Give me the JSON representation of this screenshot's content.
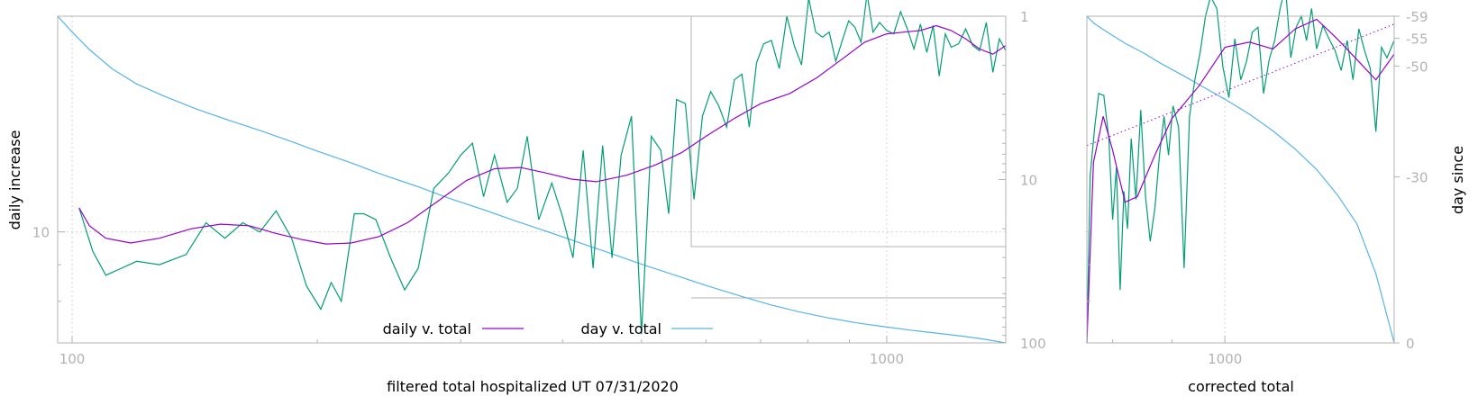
{
  "colors": {
    "daily": "#9400d3",
    "day": "#56b4e9",
    "raw": "#009e73",
    "trend": "#9400d3",
    "axis": "#b3b3b3",
    "grid": "#d3d3d3"
  },
  "chart_data": [
    {
      "type": "line",
      "xlabel": "filtered total hospitalized UT 07/31/2020",
      "ylabel": "daily increase",
      "xscale": "log",
      "yscale": "log",
      "xlim": [
        96,
        1400
      ],
      "ylim": [
        7,
        20
      ],
      "y2scale": "log",
      "y2lim": [
        1,
        100
      ],
      "y2_reversed": true,
      "grid": true,
      "legend": "bottom-center",
      "xticks": [
        100,
        1000
      ],
      "xtick_labels": [
        "100",
        "1000"
      ],
      "yticks": [
        10
      ],
      "ytick_labels": [
        "10"
      ],
      "y2ticks": [
        1,
        10,
        100
      ],
      "y2tick_labels": [
        "1",
        "10",
        "100"
      ],
      "series": [
        {
          "name": "daily v. total",
          "role": "smoothed",
          "x": [
            102,
            105,
            110,
            118,
            128,
            140,
            152,
            165,
            178,
            192,
            205,
            220,
            238,
            258,
            280,
            305,
            330,
            355,
            380,
            410,
            440,
            480,
            520,
            560,
            600,
            650,
            700,
            760,
            820,
            880,
            940,
            1000,
            1050,
            1100,
            1150,
            1200,
            1250,
            1300,
            1350,
            1400
          ],
          "y": [
            10.8,
            10.2,
            9.8,
            9.65,
            9.8,
            10.1,
            10.25,
            10.2,
            9.95,
            9.75,
            9.62,
            9.65,
            9.85,
            10.3,
            11.0,
            11.8,
            12.25,
            12.3,
            12.1,
            11.85,
            11.75,
            12.0,
            12.4,
            12.9,
            13.6,
            14.4,
            15.1,
            15.6,
            16.4,
            17.4,
            18.4,
            18.9,
            19.0,
            19.1,
            19.4,
            19.1,
            18.6,
            18.0,
            17.7,
            18.2
          ]
        },
        {
          "name": "",
          "role": "raw daily increase",
          "x": [
            102,
            106,
            110,
            115,
            120,
            128,
            138,
            146,
            154,
            162,
            170,
            178,
            186,
            194,
            202,
            208,
            214,
            222,
            228,
            236,
            246,
            256,
            266,
            278,
            290,
            300,
            310,
            320,
            330,
            342,
            352,
            362,
            374,
            388,
            400,
            412,
            424,
            436,
            448,
            460,
            472,
            486,
            500,
            514,
            528,
            540,
            552,
            566,
            580,
            594,
            608,
            622,
            636,
            650,
            664,
            678,
            692,
            706,
            722,
            738,
            754,
            770,
            786,
            802,
            818,
            834,
            850,
            866,
            882,
            898,
            914,
            930,
            946,
            962,
            980,
            1000,
            1020,
            1040,
            1060,
            1080,
            1100,
            1120,
            1140,
            1160,
            1180,
            1200,
            1225,
            1250,
            1275,
            1300,
            1325,
            1350,
            1375,
            1400
          ],
          "y": [
            10.8,
            9.4,
            8.7,
            8.9,
            9.1,
            9.0,
            9.3,
            10.3,
            9.8,
            10.3,
            10.0,
            10.7,
            9.8,
            8.4,
            7.8,
            8.5,
            8.0,
            10.6,
            10.6,
            10.4,
            9.2,
            8.3,
            8.9,
            11.5,
            12.1,
            12.8,
            13.3,
            11.2,
            12.8,
            11.0,
            11.5,
            13.6,
            10.4,
            11.7,
            10.5,
            9.2,
            13.0,
            8.9,
            13.2,
            9.2,
            12.8,
            14.5,
            7.2,
            13.6,
            13.0,
            10.6,
            15.3,
            15.1,
            11.1,
            14.5,
            15.7,
            15.0,
            14.0,
            16.3,
            16.6,
            14.0,
            17.2,
            18.3,
            18.5,
            16.9,
            20.0,
            18.2,
            17.1,
            21.2,
            19.0,
            18.7,
            19.0,
            17.3,
            18.5,
            19.7,
            19.3,
            18.4,
            21.5,
            19.0,
            19.6,
            19.1,
            18.9,
            20.3,
            19.2,
            18.0,
            19.5,
            17.8,
            19.4,
            16.5,
            18.9,
            18.1,
            18.3,
            19.2,
            18.2,
            17.9,
            19.6,
            16.7,
            18.6,
            17.9
          ]
        },
        {
          "name": "day v. total",
          "axis": "y2",
          "x": [
            96,
            100,
            105,
            112,
            120,
            130,
            142,
            155,
            170,
            185,
            200,
            220,
            240,
            265,
            290,
            320,
            350,
            385,
            420,
            460,
            500,
            550,
            600,
            660,
            720,
            780,
            850,
            920,
            1000,
            1080,
            1160,
            1240,
            1320,
            1400
          ],
          "y": [
            1.0,
            1.25,
            1.6,
            2.1,
            2.6,
            3.1,
            3.7,
            4.3,
            5.0,
            5.8,
            6.7,
            7.9,
            9.3,
            11.0,
            13.0,
            15.3,
            17.9,
            21.0,
            24.4,
            28.5,
            33.0,
            38.5,
            44.5,
            51.5,
            58.5,
            64.5,
            70.5,
            75.5,
            80.0,
            84.0,
            87.5,
            91.0,
            95.0,
            100.0
          ]
        }
      ]
    },
    {
      "type": "line",
      "xlabel": "corrected total",
      "ylabel": "day since",
      "xscale": "log",
      "xlim": [
        760,
        1400
      ],
      "y2lim": [
        0,
        -59
      ],
      "y2ticks": [
        -59,
        -55,
        -50,
        -30,
        0
      ],
      "y2tick_labels": [
        "-59",
        "-55",
        "-50",
        "-30",
        "0"
      ],
      "xticks": [
        1000
      ],
      "xtick_labels": [
        "1000"
      ],
      "series": [
        {
          "role": "smoothed",
          "x": [
            760,
            770,
            785,
            800,
            820,
            840,
            870,
            900,
            950,
            1000,
            1050,
            1100,
            1150,
            1200,
            1250,
            1300,
            1350,
            1400
          ],
          "y": [
            7.0,
            12.5,
            14.5,
            13.0,
            11.0,
            11.2,
            12.8,
            14.4,
            16.0,
            18.1,
            18.4,
            18.0,
            19.2,
            19.8,
            18.6,
            17.4,
            16.3,
            17.7
          ]
        },
        {
          "role": "raw daily increase",
          "x": [
            760,
            765,
            772,
            778,
            786,
            794,
            800,
            806,
            812,
            818,
            824,
            830,
            838,
            846,
            854,
            862,
            870,
            878,
            886,
            894,
            902,
            912,
            922,
            932,
            942,
            952,
            962,
            972,
            984,
            996,
            1008,
            1020,
            1032,
            1044,
            1056,
            1068,
            1080,
            1092,
            1104,
            1116,
            1128,
            1140,
            1152,
            1164,
            1176,
            1188,
            1200,
            1215,
            1230,
            1245,
            1260,
            1275,
            1290,
            1305,
            1320,
            1335,
            1350,
            1365,
            1380,
            1400
          ],
          "y": [
            7.0,
            12.0,
            14.0,
            15.6,
            15.5,
            13.5,
            10.4,
            12.3,
            8.3,
            11.4,
            10.1,
            13.5,
            11.1,
            14.8,
            11.2,
            9.7,
            10.8,
            12.8,
            14.5,
            12.8,
            15.0,
            14.0,
            8.9,
            14.5,
            16.3,
            17.8,
            20.0,
            21.3,
            20.5,
            17.0,
            15.4,
            18.6,
            16.3,
            17.3,
            19.0,
            19.3,
            15.6,
            17.4,
            18.5,
            20.5,
            22.0,
            17.5,
            19.3,
            20.0,
            18.5,
            20.5,
            18.0,
            19.4,
            18.6,
            17.9,
            16.8,
            18.5,
            16.3,
            19.2,
            17.9,
            16.9,
            13.8,
            18.1,
            17.5,
            18.5
          ]
        },
        {
          "role": "trend",
          "style": "dotted",
          "x": [
            760,
            1400
          ],
          "y": [
            13.2,
            19.5
          ]
        },
        {
          "axis": "y2",
          "x": [
            760,
            770,
            785,
            800,
            820,
            850,
            880,
            920,
            960,
            1000,
            1050,
            1100,
            1150,
            1200,
            1250,
            1300,
            1350,
            1400
          ],
          "y": [
            -59,
            -57.8,
            -56.6,
            -55.5,
            -54.1,
            -52.4,
            -50.5,
            -48.3,
            -46.1,
            -44.0,
            -41.3,
            -38.3,
            -35.0,
            -31.3,
            -26.8,
            -21.5,
            -12.5,
            0
          ]
        }
      ]
    }
  ]
}
